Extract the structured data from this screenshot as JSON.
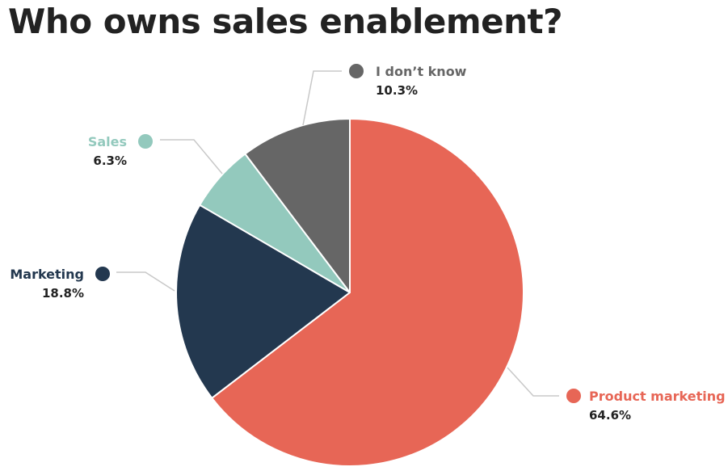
{
  "chart_data": {
    "type": "pie",
    "title": "Who owns sales enablement?",
    "slices": [
      {
        "label": "Product marketing",
        "value": 64.6,
        "value_label": "64.6%",
        "color": "#E76656"
      },
      {
        "label": "Marketing",
        "value": 18.8,
        "value_label": "18.8%",
        "color": "#23384F"
      },
      {
        "label": "Sales",
        "value": 6.3,
        "value_label": "6.3%",
        "color": "#93C9BD"
      },
      {
        "label": "I don’t know",
        "value": 10.3,
        "value_label": "10.3%",
        "color": "#666666"
      }
    ],
    "start_angle": "12 o'clock",
    "direction": "clockwise",
    "legend": "none"
  }
}
